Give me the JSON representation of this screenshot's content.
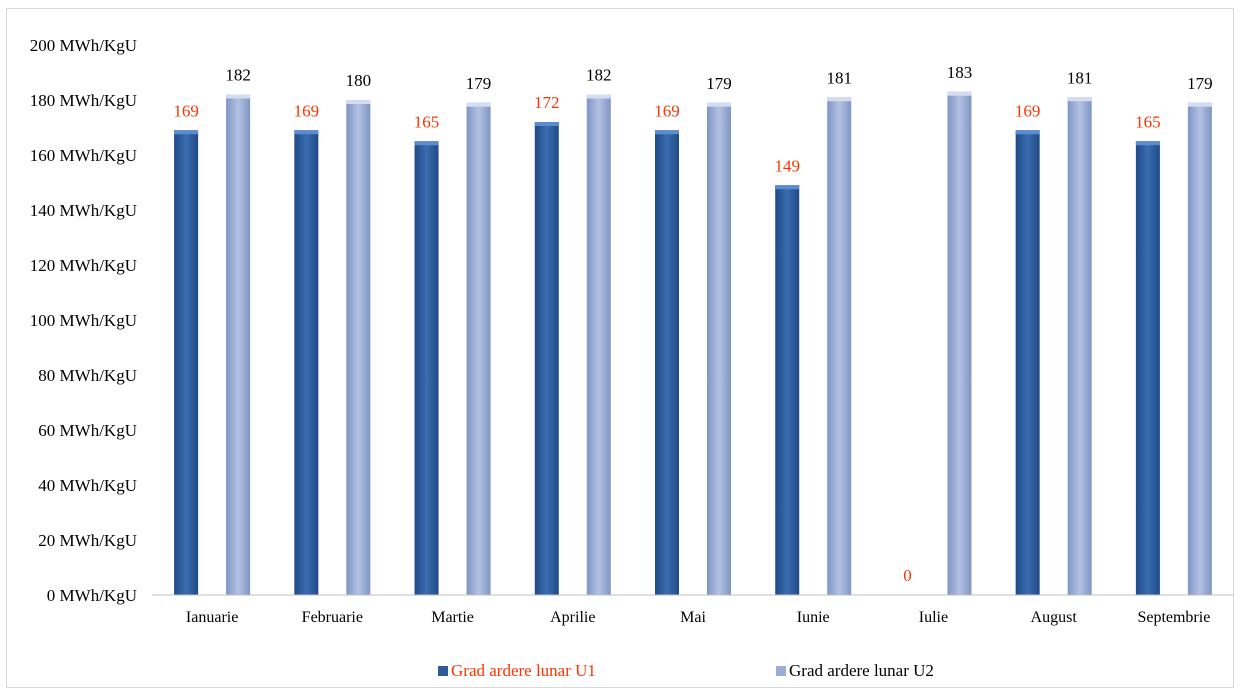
{
  "chart_data": {
    "type": "bar",
    "categories": [
      "Ianuarie",
      "Februarie",
      "Martie",
      "Aprilie",
      "Mai",
      "Iunie",
      "Iulie",
      "August",
      "Septembrie"
    ],
    "series": [
      {
        "name": "Grad ardere lunar U1",
        "values": [
          169,
          169,
          165,
          172,
          169,
          149,
          0,
          169,
          165
        ],
        "color": "#2e5c9a",
        "label_color": "#ff3300"
      },
      {
        "name": "Grad ardere lunar U2",
        "values": [
          182,
          180,
          179,
          182,
          179,
          181,
          183,
          181,
          179
        ],
        "color": "#9aaed6",
        "label_color": "#000000"
      }
    ],
    "ylim": [
      0,
      200
    ],
    "y_ticks": [
      0,
      20,
      40,
      60,
      80,
      100,
      120,
      140,
      160,
      180,
      200
    ],
    "y_tick_suffix": " MWh/KgU",
    "grid": false,
    "legend_position": "bottom"
  }
}
